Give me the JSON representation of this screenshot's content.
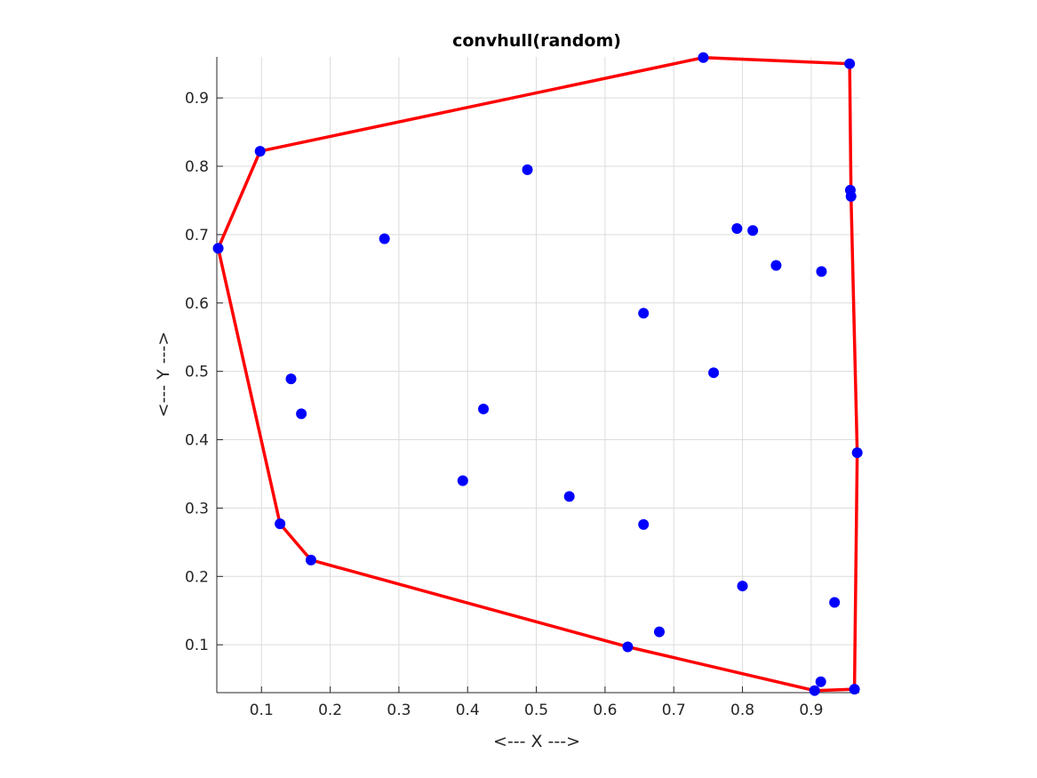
{
  "chart_data": {
    "type": "scatter",
    "title": "convhull(random)",
    "xlabel": "<--- X --->",
    "ylabel": "<--- Y --->",
    "xlim": [
      0.035,
      0.97
    ],
    "ylim": [
      0.03,
      0.96
    ],
    "grid": true,
    "xticks": [
      0.1,
      0.2,
      0.3,
      0.4,
      0.5,
      0.6,
      0.7,
      0.8,
      0.9
    ],
    "yticks": [
      0.1,
      0.2,
      0.3,
      0.4,
      0.5,
      0.6,
      0.7,
      0.8,
      0.9
    ],
    "series": [
      {
        "marker": "filled-circle",
        "color": "#0000ff",
        "points": [
          [
            0.743,
            0.959
          ],
          [
            0.956,
            0.95
          ],
          [
            0.098,
            0.822
          ],
          [
            0.487,
            0.795
          ],
          [
            0.957,
            0.765
          ],
          [
            0.958,
            0.756
          ],
          [
            0.792,
            0.709
          ],
          [
            0.815,
            0.706
          ],
          [
            0.279,
            0.694
          ],
          [
            0.037,
            0.68
          ],
          [
            0.849,
            0.655
          ],
          [
            0.915,
            0.646
          ],
          [
            0.656,
            0.585
          ],
          [
            0.758,
            0.498
          ],
          [
            0.143,
            0.489
          ],
          [
            0.158,
            0.438
          ],
          [
            0.423,
            0.445
          ],
          [
            0.967,
            0.381
          ],
          [
            0.393,
            0.34
          ],
          [
            0.548,
            0.317
          ],
          [
            0.127,
            0.277
          ],
          [
            0.656,
            0.276
          ],
          [
            0.172,
            0.224
          ],
          [
            0.8,
            0.186
          ],
          [
            0.934,
            0.162
          ],
          [
            0.679,
            0.119
          ],
          [
            0.633,
            0.097
          ],
          [
            0.914,
            0.046
          ],
          [
            0.963,
            0.035
          ],
          [
            0.905,
            0.033
          ]
        ]
      },
      {
        "type": "line",
        "color": "#ff0000",
        "points": [
          [
            0.037,
            0.68
          ],
          [
            0.127,
            0.277
          ],
          [
            0.172,
            0.224
          ],
          [
            0.633,
            0.097
          ],
          [
            0.905,
            0.033
          ],
          [
            0.963,
            0.035
          ],
          [
            0.967,
            0.381
          ],
          [
            0.958,
            0.756
          ],
          [
            0.956,
            0.95
          ],
          [
            0.743,
            0.959
          ],
          [
            0.098,
            0.822
          ],
          [
            0.037,
            0.68
          ]
        ]
      }
    ]
  }
}
